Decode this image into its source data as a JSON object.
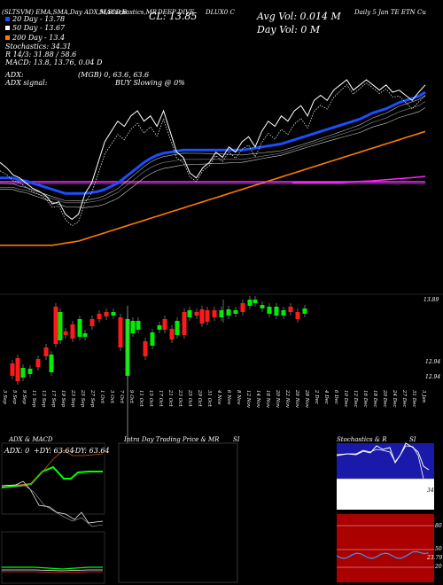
{
  "header": {
    "title_left": "(SLTSVM) EMA,SMA,Day ADX,MACD,B",
    "title_mid": "SI,Stochastics,MR",
    "title_company": "DEEP DIVE",
    "title_right": "DLUX0 C",
    "title_far_right": "Daily 5 Jan TE ETN Cu",
    "cl_label": "CL: 13.85",
    "avg_vol": "Avg Vol: 0.014 M",
    "day_vol": "Day Vol: 0 M"
  },
  "legend": {
    "l20": "20 Day - 13.78",
    "l50": "50 Day - 13.67",
    "l200": "200 Day - 13.4",
    "stoch": "Stochastics: 34.31",
    "r_line": "R 14/3: 31.88 / 58.6",
    "macd": "MACD: 13.8, 13.76, 0.04 D",
    "adx": "ADX:",
    "adx_vals": "(MGB) 0, 63.6, 63.6",
    "adx_signal": "ADX signal:",
    "buy_line": "BUY Slowing @ 0%"
  },
  "colors": {
    "ema20": "#1a4fff",
    "sma50": "#ffffff",
    "sma200": "#ff7a00",
    "magenta": "#ff22ff",
    "up": "#00ee00",
    "down": "#ff1a1a",
    "stoch_bg": "#1a1aaa",
    "rsi_bg": "#aa0000"
  },
  "chart_data": [
    {
      "type": "line",
      "name": "price-overlay",
      "x_index_count": 66,
      "series": [
        {
          "name": "20 Day",
          "color": "#1a4fff",
          "values": [
            12.95,
            12.95,
            12.95,
            12.93,
            12.92,
            12.9,
            12.88,
            12.86,
            12.84,
            12.82,
            12.8,
            12.8,
            12.8,
            12.8,
            12.81,
            12.82,
            12.84,
            12.87,
            12.9,
            12.95,
            13.0,
            13.05,
            13.1,
            13.14,
            13.17,
            13.19,
            13.2,
            13.21,
            13.22,
            13.22,
            13.22,
            13.22,
            13.22,
            13.22,
            13.22,
            13.22,
            13.22,
            13.22,
            13.23,
            13.24,
            13.25,
            13.26,
            13.27,
            13.28,
            13.3,
            13.32,
            13.34,
            13.36,
            13.38,
            13.4,
            13.42,
            13.44,
            13.46,
            13.48,
            13.5,
            13.52,
            13.55,
            13.58,
            13.6,
            13.62,
            13.65,
            13.68,
            13.7,
            13.72,
            13.74,
            13.78
          ]
        },
        {
          "name": "200 Day",
          "color": "#ff7a00",
          "values": [
            12.3,
            12.3,
            12.3,
            12.3,
            12.3,
            12.3,
            12.3,
            12.3,
            12.3,
            12.31,
            12.32,
            12.33,
            12.34,
            12.36,
            12.38,
            12.4,
            12.42,
            12.44,
            12.46,
            12.48,
            12.5,
            12.52,
            12.54,
            12.56,
            12.58,
            12.6,
            12.62,
            12.64,
            12.66,
            12.68,
            12.7,
            12.72,
            12.74,
            12.76,
            12.78,
            12.8,
            12.82,
            12.84,
            12.86,
            12.88,
            12.9,
            12.92,
            12.94,
            12.96,
            12.98,
            13.0,
            13.02,
            13.04,
            13.06,
            13.08,
            13.1,
            13.12,
            13.14,
            13.16,
            13.18,
            13.2,
            13.22,
            13.24,
            13.26,
            13.28,
            13.3,
            13.32,
            13.34,
            13.36,
            13.38,
            13.4
          ]
        }
      ]
    },
    {
      "type": "bar",
      "name": "candles",
      "dates": [
        "3 Sep",
        "5 Sep",
        "9 Sep",
        "11 Sep",
        "13 Sep",
        "17 Sep",
        "19 Sep",
        "23 Sep",
        "25 Sep",
        "27 Sep",
        "1 Oct",
        "3 Oct",
        "7 Oct",
        "9 Oct",
        "11 Oct",
        "15 Oct",
        "17 Oct",
        "21 Oct",
        "23 Oct",
        "25 Oct",
        "29 Oct",
        "31 Oct",
        "4 Nov",
        "6 Nov",
        "8 Nov",
        "12 Nov",
        "14 Nov",
        "18 Nov",
        "20 Nov",
        "22 Nov",
        "26 Nov",
        "28 Nov",
        "2 Dec",
        "4 Dec",
        "6 Dec",
        "10 Dec",
        "12 Dec",
        "16 Dec",
        "18 Dec",
        "20 Dec",
        "24 Dec",
        "27 Dec",
        "31 Dec",
        "3 Jan"
      ],
      "price_labels": [
        "13.89",
        "12.94",
        "12.94"
      ]
    },
    {
      "type": "line",
      "name": "adx-macd",
      "title": "ADX & MACD",
      "labels": [
        "ADX: 0",
        "+DY: 63.64",
        "-DY: 63.64"
      ]
    },
    {
      "type": "table",
      "name": "intraday",
      "title": "Intra Day Trading Price & MR"
    },
    {
      "type": "line",
      "name": "stochastics",
      "title": "Stochastics & R",
      "ticks": [
        "80",
        "50",
        "20"
      ],
      "last_label": "34.31"
    },
    {
      "type": "line",
      "name": "rsi",
      "title": "SI",
      "ticks": [
        "80",
        "50",
        "20"
      ],
      "last_label": "23.79"
    }
  ]
}
